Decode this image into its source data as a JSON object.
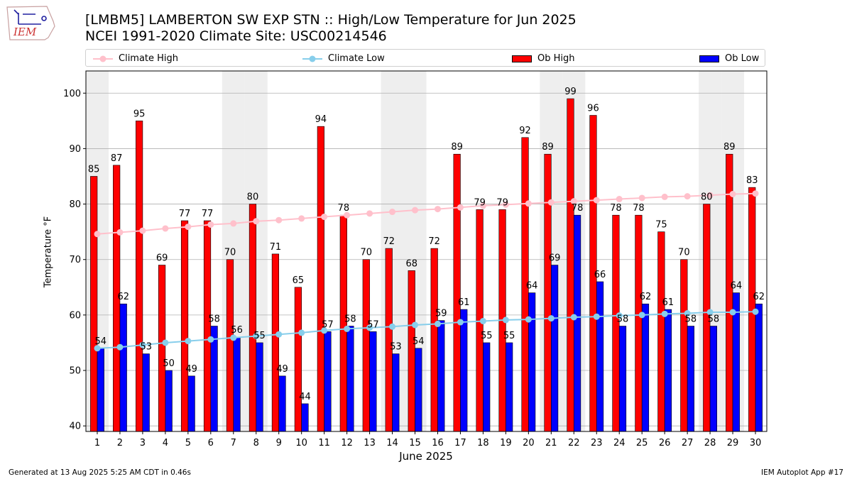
{
  "logo": {
    "text": "IEM"
  },
  "title": {
    "line1": "[LMBM5] LAMBERTON SW EXP STN :: High/Low Temperature for Jun 2025",
    "line2": "NCEI 1991-2020 Climate Site: USC00214546"
  },
  "legend": {
    "climate_high": "Climate High",
    "climate_low": "Climate Low",
    "ob_high": "Ob High",
    "ob_low": "Ob Low"
  },
  "colors": {
    "ob_high": "#ff0000",
    "ob_low": "#0000ff",
    "climate_high": "#ffc0cb",
    "climate_low": "#87ceeb",
    "weekend_band": "#eeeeee",
    "grid": "#b0b0b0"
  },
  "footer": {
    "left": "Generated at 13 Aug 2025 5:25 AM CDT in 0.46s",
    "right": "IEM Autoplot App #17"
  },
  "chart_data": {
    "type": "bar",
    "xlabel": "June 2025",
    "ylabel": "Temperature °F",
    "ylim": [
      39,
      104
    ],
    "yticks": [
      40,
      50,
      60,
      70,
      80,
      90,
      100
    ],
    "grid": true,
    "legend_position": "top",
    "categories": [
      1,
      2,
      3,
      4,
      5,
      6,
      7,
      8,
      9,
      10,
      11,
      12,
      13,
      14,
      15,
      16,
      17,
      18,
      19,
      20,
      21,
      22,
      23,
      24,
      25,
      26,
      27,
      28,
      29,
      30
    ],
    "weekend_days": [
      1,
      7,
      8,
      14,
      15,
      21,
      22,
      28,
      29
    ],
    "series": [
      {
        "name": "Ob High",
        "kind": "bar",
        "values": [
          85,
          87,
          95,
          69,
          77,
          77,
          70,
          80,
          71,
          65,
          94,
          78,
          70,
          72,
          68,
          72,
          89,
          79,
          79,
          92,
          89,
          99,
          96,
          78,
          78,
          75,
          70,
          80,
          89,
          83
        ]
      },
      {
        "name": "Ob Low",
        "kind": "bar",
        "values": [
          54,
          62,
          53,
          50,
          49,
          58,
          56,
          55,
          49,
          44,
          57,
          58,
          57,
          53,
          54,
          59,
          61,
          55,
          55,
          64,
          69,
          78,
          66,
          58,
          62,
          61,
          58,
          58,
          64,
          62
        ]
      },
      {
        "name": "Climate High",
        "kind": "line",
        "values": [
          74.6,
          74.9,
          75.2,
          75.6,
          75.9,
          76.3,
          76.5,
          76.9,
          77.1,
          77.4,
          77.7,
          78.0,
          78.3,
          78.6,
          78.9,
          79.1,
          79.4,
          79.7,
          79.9,
          80.1,
          80.3,
          80.5,
          80.7,
          80.9,
          81.1,
          81.3,
          81.4,
          81.6,
          81.8,
          81.9
        ]
      },
      {
        "name": "Climate Low",
        "kind": "line",
        "values": [
          54.0,
          54.2,
          54.6,
          55.0,
          55.3,
          55.6,
          55.9,
          56.2,
          56.5,
          56.8,
          57.2,
          57.5,
          57.7,
          57.9,
          58.2,
          58.4,
          58.7,
          58.9,
          59.1,
          59.2,
          59.4,
          59.6,
          59.7,
          59.9,
          60.0,
          60.2,
          60.3,
          60.5,
          60.5,
          60.6
        ]
      }
    ]
  }
}
